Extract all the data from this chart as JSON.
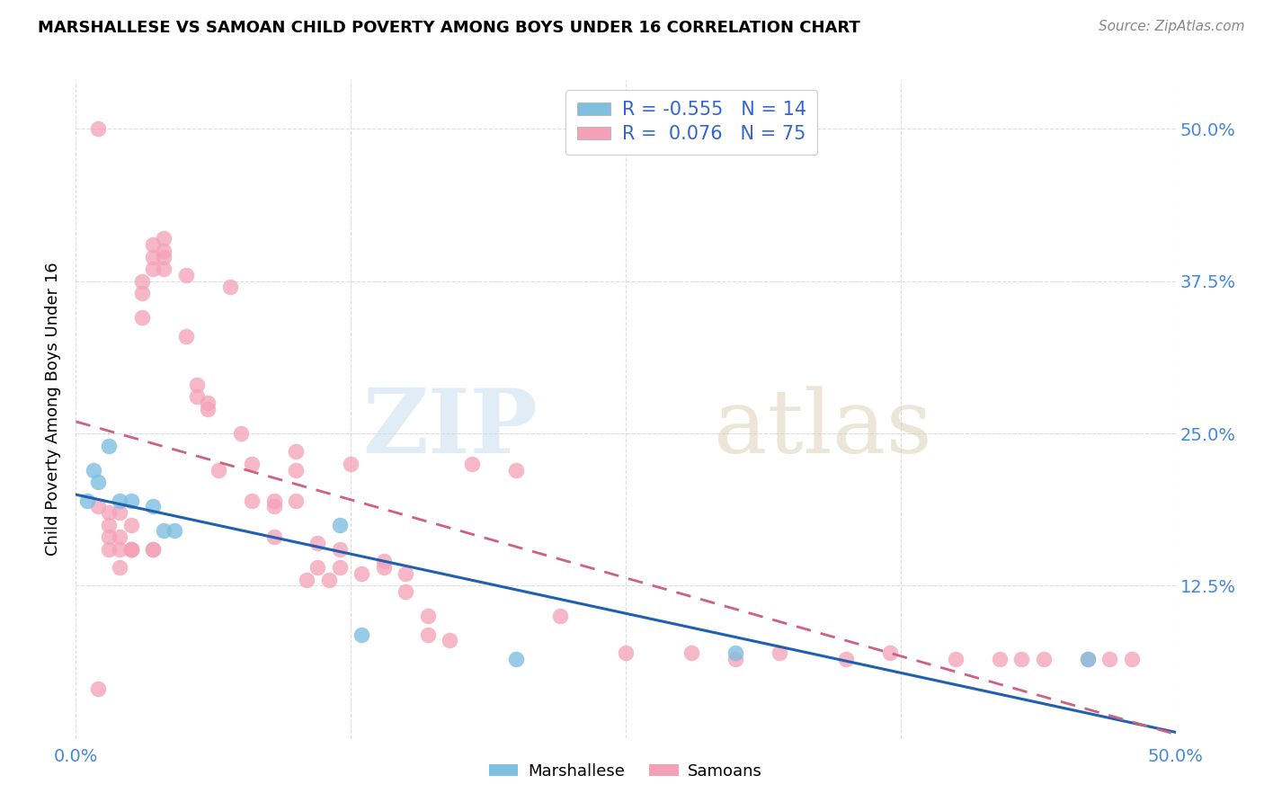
{
  "title": "MARSHALLESE VS SAMOAN CHILD POVERTY AMONG BOYS UNDER 16 CORRELATION CHART",
  "source": "Source: ZipAtlas.com",
  "ylabel": "Child Poverty Among Boys Under 16",
  "xlim": [
    0.0,
    0.5
  ],
  "ylim": [
    0.0,
    0.54
  ],
  "legend_r_marshallese": "-0.555",
  "legend_n_marshallese": "14",
  "legend_r_samoans": " 0.076",
  "legend_n_samoans": "75",
  "marshallese_color": "#7fbfdf",
  "samoans_color": "#f4a0b8",
  "line_blue": "#2060b0",
  "line_pink": "#d06080",
  "marshallese_x": [
    0.005,
    0.008,
    0.01,
    0.015,
    0.02,
    0.025,
    0.035,
    0.04,
    0.045,
    0.12,
    0.13,
    0.2,
    0.3,
    0.46
  ],
  "marshallese_y": [
    0.195,
    0.22,
    0.21,
    0.24,
    0.195,
    0.195,
    0.19,
    0.17,
    0.17,
    0.175,
    0.085,
    0.065,
    0.07,
    0.065
  ],
  "samoans_x": [
    0.01,
    0.01,
    0.015,
    0.015,
    0.015,
    0.015,
    0.02,
    0.02,
    0.02,
    0.02,
    0.025,
    0.025,
    0.03,
    0.03,
    0.03,
    0.035,
    0.035,
    0.035,
    0.04,
    0.04,
    0.04,
    0.04,
    0.05,
    0.05,
    0.055,
    0.055,
    0.06,
    0.06,
    0.065,
    0.07,
    0.075,
    0.08,
    0.08,
    0.09,
    0.09,
    0.09,
    0.1,
    0.1,
    0.1,
    0.105,
    0.11,
    0.11,
    0.115,
    0.12,
    0.12,
    0.125,
    0.13,
    0.14,
    0.14,
    0.15,
    0.15,
    0.16,
    0.16,
    0.17,
    0.18,
    0.2,
    0.22,
    0.25,
    0.28,
    0.3,
    0.32,
    0.35,
    0.37,
    0.4,
    0.42,
    0.43,
    0.44,
    0.46,
    0.47,
    0.48,
    0.01,
    0.025,
    0.025,
    0.035,
    0.035
  ],
  "samoans_y": [
    0.5,
    0.19,
    0.185,
    0.175,
    0.165,
    0.155,
    0.185,
    0.165,
    0.155,
    0.14,
    0.175,
    0.155,
    0.375,
    0.365,
    0.345,
    0.405,
    0.395,
    0.385,
    0.41,
    0.4,
    0.395,
    0.385,
    0.38,
    0.33,
    0.29,
    0.28,
    0.275,
    0.27,
    0.22,
    0.37,
    0.25,
    0.225,
    0.195,
    0.195,
    0.19,
    0.165,
    0.235,
    0.22,
    0.195,
    0.13,
    0.16,
    0.14,
    0.13,
    0.155,
    0.14,
    0.225,
    0.135,
    0.145,
    0.14,
    0.135,
    0.12,
    0.1,
    0.085,
    0.08,
    0.225,
    0.22,
    0.1,
    0.07,
    0.07,
    0.065,
    0.07,
    0.065,
    0.07,
    0.065,
    0.065,
    0.065,
    0.065,
    0.065,
    0.065,
    0.065,
    0.04,
    0.155,
    0.155,
    0.155,
    0.155
  ],
  "background_color": "#ffffff",
  "grid_color": "#dddddd"
}
